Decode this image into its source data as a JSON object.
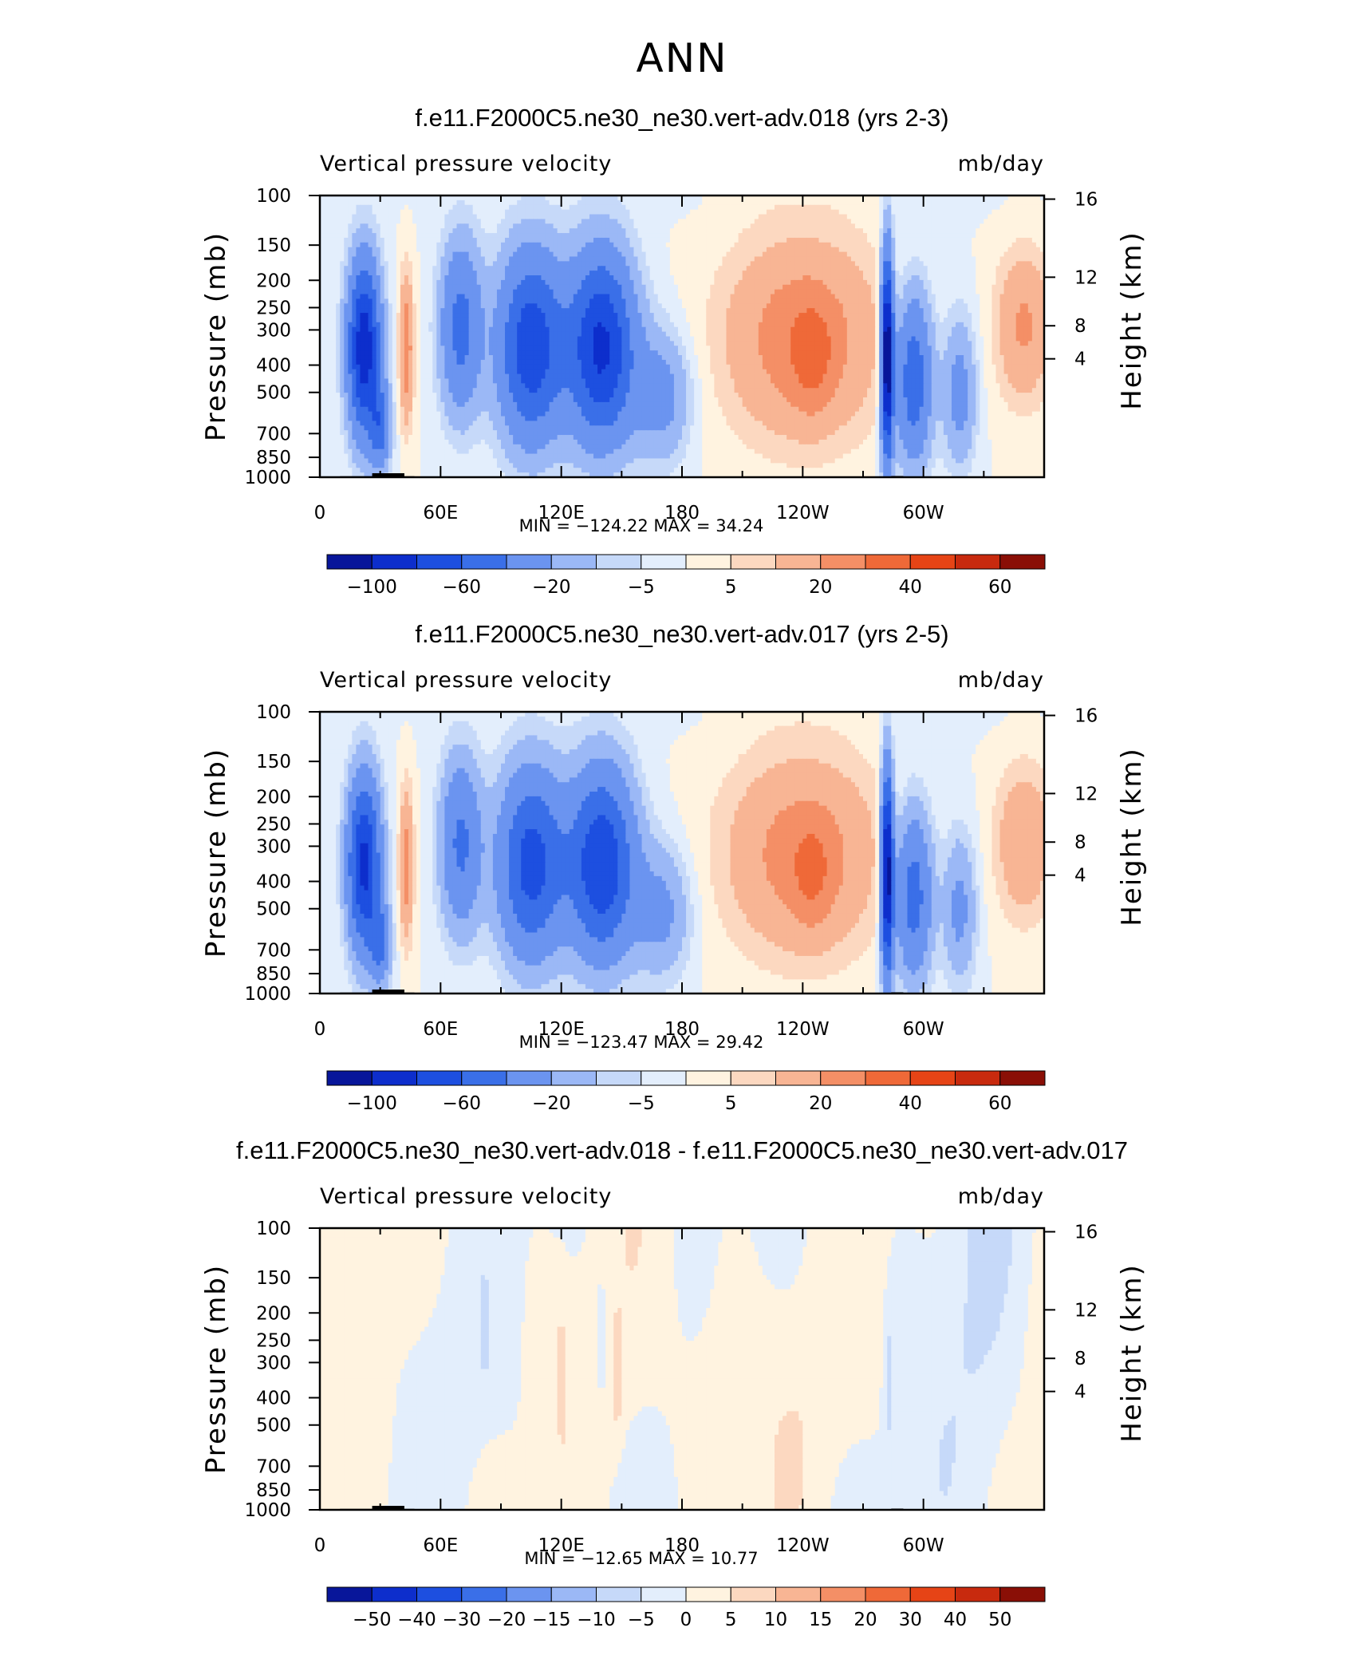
{
  "page_title": "ANN",
  "chart_data": [
    {
      "type": "heatmap",
      "title": "f.e11.F2000C5.ne30_ne30.vert-adv.018 (yrs 2-3)",
      "left_label": "Vertical pressure velocity",
      "right_label": "mb/day",
      "ylabel": "Pressure (mb)",
      "y2label": "Height (km)",
      "x_ticks": [
        "0",
        "60E",
        "120E",
        "180",
        "120W",
        "60W"
      ],
      "y_ticks": [
        "100",
        "150",
        "200",
        "250",
        "300",
        "400",
        "500",
        "700",
        "850",
        "1000"
      ],
      "y2_ticks": [
        "16",
        "12",
        "8",
        "4"
      ],
      "stats": "MIN = −124.22   MAX =   34.24",
      "min": -124.22,
      "max": 34.24,
      "colorbar_labels": [
        "−100",
        "−60",
        "−20",
        "−5",
        "5",
        "20",
        "40",
        "60"
      ],
      "colorbar_colors": [
        "#08169a",
        "#0d2ecc",
        "#1d4fe0",
        "#3a6fe8",
        "#6b94f0",
        "#9bb8f6",
        "#c6d9f9",
        "#e3eefc",
        "#fff3e0",
        "#fcd8c0",
        "#f8b594",
        "#f48f66",
        "#ef6938",
        "#e64416",
        "#c82a0e",
        "#8a0f06"
      ],
      "features": [
        {
          "region": "20E-40E (Africa)",
          "sign": "ascent",
          "level": "strong"
        },
        {
          "region": "40E-45E",
          "sign": "descent",
          "level": "moderate"
        },
        {
          "region": "60E-200E (Indo-Pacific)",
          "sign": "ascent",
          "level": "strong"
        },
        {
          "region": "190E-280E (East Pacific)",
          "sign": "descent",
          "level": "moderate"
        },
        {
          "region": "280E-300E (South America)",
          "sign": "ascent",
          "level": "strong"
        },
        {
          "region": "330E-360E (Atlantic)",
          "sign": "descent",
          "level": "moderate"
        }
      ]
    },
    {
      "type": "heatmap",
      "title": "f.e11.F2000C5.ne30_ne30.vert-adv.017 (yrs 2-5)",
      "left_label": "Vertical pressure velocity",
      "right_label": "mb/day",
      "ylabel": "Pressure (mb)",
      "y2label": "Height (km)",
      "x_ticks": [
        "0",
        "60E",
        "120E",
        "180",
        "120W",
        "60W"
      ],
      "y_ticks": [
        "100",
        "150",
        "200",
        "250",
        "300",
        "400",
        "500",
        "700",
        "850",
        "1000"
      ],
      "y2_ticks": [
        "16",
        "12",
        "8",
        "4"
      ],
      "stats": "MIN = −123.47   MAX =   29.42",
      "min": -123.47,
      "max": 29.42,
      "colorbar_labels": [
        "−100",
        "−60",
        "−20",
        "−5",
        "5",
        "20",
        "40",
        "60"
      ],
      "colorbar_colors": [
        "#08169a",
        "#0d2ecc",
        "#1d4fe0",
        "#3a6fe8",
        "#6b94f0",
        "#9bb8f6",
        "#c6d9f9",
        "#e3eefc",
        "#fff3e0",
        "#fcd8c0",
        "#f8b594",
        "#f48f66",
        "#ef6938",
        "#e64416",
        "#c82a0e",
        "#8a0f06"
      ],
      "features": [
        {
          "region": "20E-40E (Africa)",
          "sign": "ascent",
          "level": "strong"
        },
        {
          "region": "40E-45E",
          "sign": "descent",
          "level": "moderate"
        },
        {
          "region": "60E-200E (Indo-Pacific)",
          "sign": "ascent",
          "level": "strong"
        },
        {
          "region": "190E-280E (East Pacific)",
          "sign": "descent",
          "level": "moderate"
        },
        {
          "region": "280E-300E (South America)",
          "sign": "ascent",
          "level": "strong"
        },
        {
          "region": "330E-360E (Atlantic)",
          "sign": "descent",
          "level": "moderate"
        }
      ]
    },
    {
      "type": "heatmap",
      "title": "f.e11.F2000C5.ne30_ne30.vert-adv.018 - f.e11.F2000C5.ne30_ne30.vert-adv.017",
      "left_label": "Vertical pressure velocity",
      "right_label": "mb/day",
      "ylabel": "Pressure (mb)",
      "y2label": "Height (km)",
      "x_ticks": [
        "0",
        "60E",
        "120E",
        "180",
        "120W",
        "60W"
      ],
      "y_ticks": [
        "100",
        "150",
        "200",
        "250",
        "300",
        "400",
        "500",
        "700",
        "850",
        "1000"
      ],
      "y2_ticks": [
        "16",
        "12",
        "8",
        "4"
      ],
      "stats": "MIN = −12.65   MAX =   10.77",
      "min": -12.65,
      "max": 10.77,
      "colorbar_labels": [
        "−50",
        "−40",
        "−30",
        "−20",
        "−15",
        "−10",
        "−5",
        "0",
        "5",
        "10",
        "15",
        "20",
        "30",
        "40",
        "50"
      ],
      "colorbar_colors": [
        "#08169a",
        "#0d2ecc",
        "#1d4fe0",
        "#3a6fe8",
        "#6b94f0",
        "#9bb8f6",
        "#c6d9f9",
        "#e3eefc",
        "#fff3e0",
        "#fcd8c0",
        "#f8b594",
        "#f48f66",
        "#ef6938",
        "#e64416",
        "#c82a0e",
        "#8a0f06"
      ],
      "features": [
        {
          "region": "0-60E",
          "sign": "mixed",
          "level": "weak"
        },
        {
          "region": "60E-180",
          "sign": "mixed",
          "level": "weak"
        },
        {
          "region": "180-120W",
          "sign": "descent",
          "level": "weak"
        },
        {
          "region": "120W-0",
          "sign": "ascent",
          "level": "weak"
        }
      ]
    }
  ]
}
